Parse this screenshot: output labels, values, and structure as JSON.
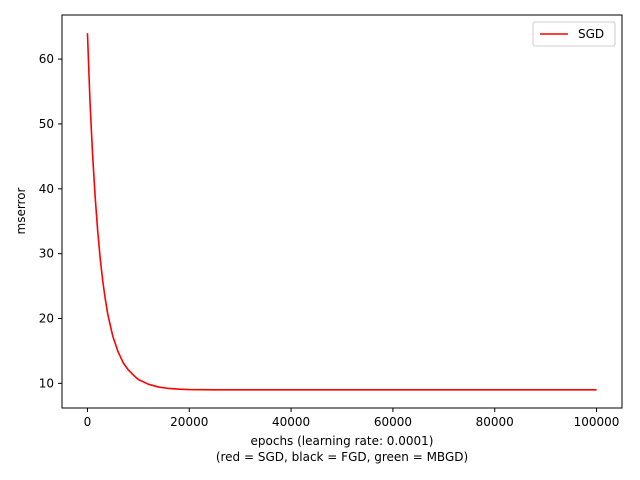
{
  "chart_data": {
    "type": "line",
    "title": "",
    "xlabel": "epochs (learning rate: 0.0001)",
    "xlabel_line2": "(red = SGD, black = FGD, green = MBGD)",
    "ylabel": "mserror",
    "xlim": [
      -5000,
      105000
    ],
    "ylim": [
      6.2,
      66.8
    ],
    "xticks": [
      0,
      20000,
      40000,
      60000,
      80000,
      100000
    ],
    "yticks": [
      10,
      20,
      30,
      40,
      50,
      60
    ],
    "grid": false,
    "legend_position": "top-right",
    "series": [
      {
        "name": "SGD",
        "color": "#ff0000",
        "x": [
          0,
          500,
          1000,
          1500,
          2000,
          2500,
          3000,
          3500,
          4000,
          5000,
          6000,
          7000,
          8000,
          9000,
          10000,
          12000,
          14000,
          16000,
          18000,
          20000,
          25000,
          30000,
          40000,
          60000,
          80000,
          100000
        ],
        "y": [
          64.0,
          53.4,
          45.4,
          38.9,
          33.6,
          29.3,
          25.8,
          23.0,
          20.6,
          17.2,
          14.9,
          13.2,
          12.1,
          11.3,
          10.6,
          9.85,
          9.43,
          9.21,
          9.1,
          9.04,
          9.0,
          9.0,
          9.0,
          9.0,
          9.0,
          9.0
        ]
      }
    ]
  }
}
